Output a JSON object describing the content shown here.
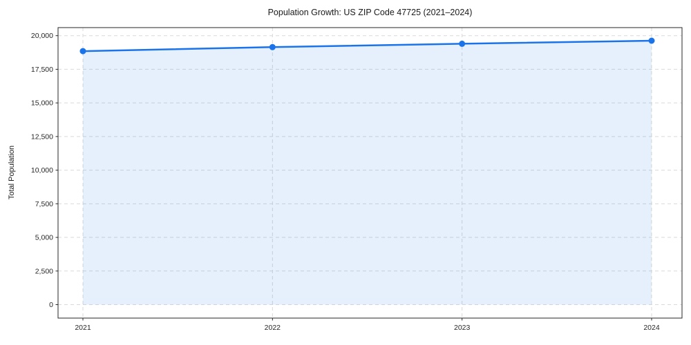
{
  "chart_data": {
    "type": "line",
    "title": "Population Growth: US ZIP Code 47725 (2021–2024)",
    "xlabel": "",
    "ylabel": "Total Population",
    "x": [
      2021,
      2022,
      2023,
      2024
    ],
    "x_tick_labels": [
      "2021",
      "2022",
      "2023",
      "2024"
    ],
    "series": [
      {
        "name": "Total Population",
        "values": [
          18850,
          19150,
          19400,
          19625
        ]
      }
    ],
    "y_ticks": [
      0,
      2500,
      5000,
      7500,
      10000,
      12500,
      15000,
      17500,
      20000
    ],
    "y_tick_labels": [
      "0",
      "2,500",
      "5,000",
      "7,500",
      "10,000",
      "12,500",
      "15,000",
      "17,500",
      "20,000"
    ],
    "ylim": [
      -1000,
      20600
    ],
    "area_fill_baseline": 0,
    "grid": {
      "horizontal": true,
      "vertical": true,
      "style": "dashed"
    },
    "legend_position": "none",
    "colors": {
      "line": "#1a73e8",
      "marker": "#1a73e8",
      "fill": "#1a73e8",
      "fill_opacity": 0.11,
      "grid": "#d9d9d9",
      "axis": "#262626",
      "text": "#262626"
    }
  }
}
